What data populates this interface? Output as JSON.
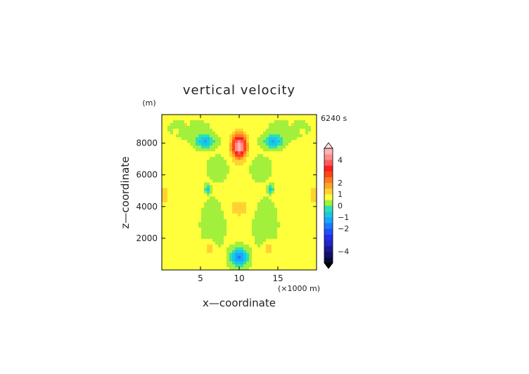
{
  "chart_data": {
    "type": "heatmap",
    "title": "vertical velocity",
    "time_label": "6240 s",
    "xlabel": "x—coordinate",
    "ylabel": "z—coordinate",
    "x_unit": "(×1000 m)",
    "y_unit": "(m)",
    "xlim": [
      0,
      20
    ],
    "ylim": [
      0,
      9800
    ],
    "x_ticks": [
      5,
      10,
      15
    ],
    "x_tick_labels": [
      "5",
      "10",
      "15"
    ],
    "y_ticks": [
      2000,
      4000,
      6000,
      8000
    ],
    "y_tick_labels": [
      "2000",
      "4000",
      "6000",
      "8000"
    ],
    "background_value": 0.6,
    "features": [
      {
        "x": 10,
        "y": 7800,
        "sx": 0.9,
        "sy": 700,
        "amp": 4.6
      },
      {
        "x": 10,
        "y": 6000,
        "sx": 1.1,
        "sy": 900,
        "amp": 0.35
      },
      {
        "x": 10,
        "y": 3900,
        "sx": 1.3,
        "sy": 600,
        "amp": 0.7
      },
      {
        "x": 10,
        "y": 800,
        "sx": 1.0,
        "sy": 550,
        "amp": -2.2
      },
      {
        "x": 6.2,
        "y": 1400,
        "sx": 0.75,
        "sy": 450,
        "amp": 0.8
      },
      {
        "x": 13.8,
        "y": 1400,
        "sx": 0.75,
        "sy": 450,
        "amp": 0.8
      },
      {
        "x": 0.3,
        "y": 4700,
        "sx": 0.55,
        "sy": 550,
        "amp": 0.8
      },
      {
        "x": 19.7,
        "y": 4700,
        "sx": 0.55,
        "sy": 550,
        "amp": 0.8
      },
      {
        "x": 5.6,
        "y": 8100,
        "sx": 1.2,
        "sy": 380,
        "amp": -1.6
      },
      {
        "x": 14.4,
        "y": 8100,
        "sx": 1.2,
        "sy": 380,
        "amp": -1.6
      },
      {
        "x": 5.9,
        "y": 5100,
        "sx": 0.35,
        "sy": 230,
        "amp": -1.3
      },
      {
        "x": 14.1,
        "y": 5100,
        "sx": 0.35,
        "sy": 230,
        "amp": -1.3
      },
      {
        "x": 3.5,
        "y": 8900,
        "sx": 2.2,
        "sy": 500,
        "amp": -0.5
      },
      {
        "x": 16.5,
        "y": 8900,
        "sx": 2.2,
        "sy": 500,
        "amp": -0.5
      },
      {
        "x": 7.3,
        "y": 6400,
        "sx": 1.2,
        "sy": 650,
        "amp": -0.55
      },
      {
        "x": 12.7,
        "y": 6400,
        "sx": 1.2,
        "sy": 650,
        "amp": -0.55
      },
      {
        "x": 6.6,
        "y": 2800,
        "sx": 1.3,
        "sy": 1400,
        "amp": -0.55
      },
      {
        "x": 13.4,
        "y": 2800,
        "sx": 1.3,
        "sy": 1400,
        "amp": -0.55
      },
      {
        "x": 3.2,
        "y": 9200,
        "sx": 0.35,
        "sy": 200,
        "amp": 0.9
      },
      {
        "x": 16.8,
        "y": 9200,
        "sx": 0.35,
        "sy": 200,
        "amp": 0.9
      },
      {
        "x": 1.8,
        "y": 8700,
        "sx": 0.25,
        "sy": 160,
        "amp": 0.7
      },
      {
        "x": 18.2,
        "y": 8700,
        "sx": 0.25,
        "sy": 160,
        "amp": 0.7
      }
    ],
    "colorbar": {
      "min": -5,
      "max": 5,
      "tick_values": [
        4,
        2,
        1,
        0,
        -1,
        -2,
        -4
      ],
      "tick_labels": [
        "4",
        "2",
        "1",
        "0",
        "−1",
        "−2",
        "−4"
      ],
      "levels": [
        {
          "lo": -5,
          "hi": -4.5,
          "color": "#0a0a3c"
        },
        {
          "lo": -4.5,
          "hi": -4,
          "color": "#12126a"
        },
        {
          "lo": -4,
          "hi": -3.5,
          "color": "#1a1a96"
        },
        {
          "lo": -3.5,
          "hi": -3,
          "color": "#1e28c8"
        },
        {
          "lo": -3,
          "hi": -2.5,
          "color": "#2030e6"
        },
        {
          "lo": -2.5,
          "hi": -2,
          "color": "#1f50ff"
        },
        {
          "lo": -2,
          "hi": -1.5,
          "color": "#1a7cff"
        },
        {
          "lo": -1.5,
          "hi": -1,
          "color": "#1aa6ff"
        },
        {
          "lo": -1,
          "hi": -0.5,
          "color": "#19c8e0"
        },
        {
          "lo": -0.5,
          "hi": 0,
          "color": "#2ee0b4"
        },
        {
          "lo": 0,
          "hi": 0.5,
          "color": "#a2f03c"
        },
        {
          "lo": 0.5,
          "hi": 1,
          "color": "#ffff3c"
        },
        {
          "lo": 1,
          "hi": 1.5,
          "color": "#ffd232"
        },
        {
          "lo": 1.5,
          "hi": 2,
          "color": "#ffa628"
        },
        {
          "lo": 2,
          "hi": 2.5,
          "color": "#ff7a1e"
        },
        {
          "lo": 2.5,
          "hi": 3,
          "color": "#ff4614"
        },
        {
          "lo": 3,
          "hi": 3.5,
          "color": "#ff1e1e"
        },
        {
          "lo": 3.5,
          "hi": 4,
          "color": "#ff5a5a"
        },
        {
          "lo": 4,
          "hi": 4.5,
          "color": "#ff8c8c"
        },
        {
          "lo": 4.5,
          "hi": 5,
          "color": "#ffb4b4"
        }
      ]
    }
  }
}
